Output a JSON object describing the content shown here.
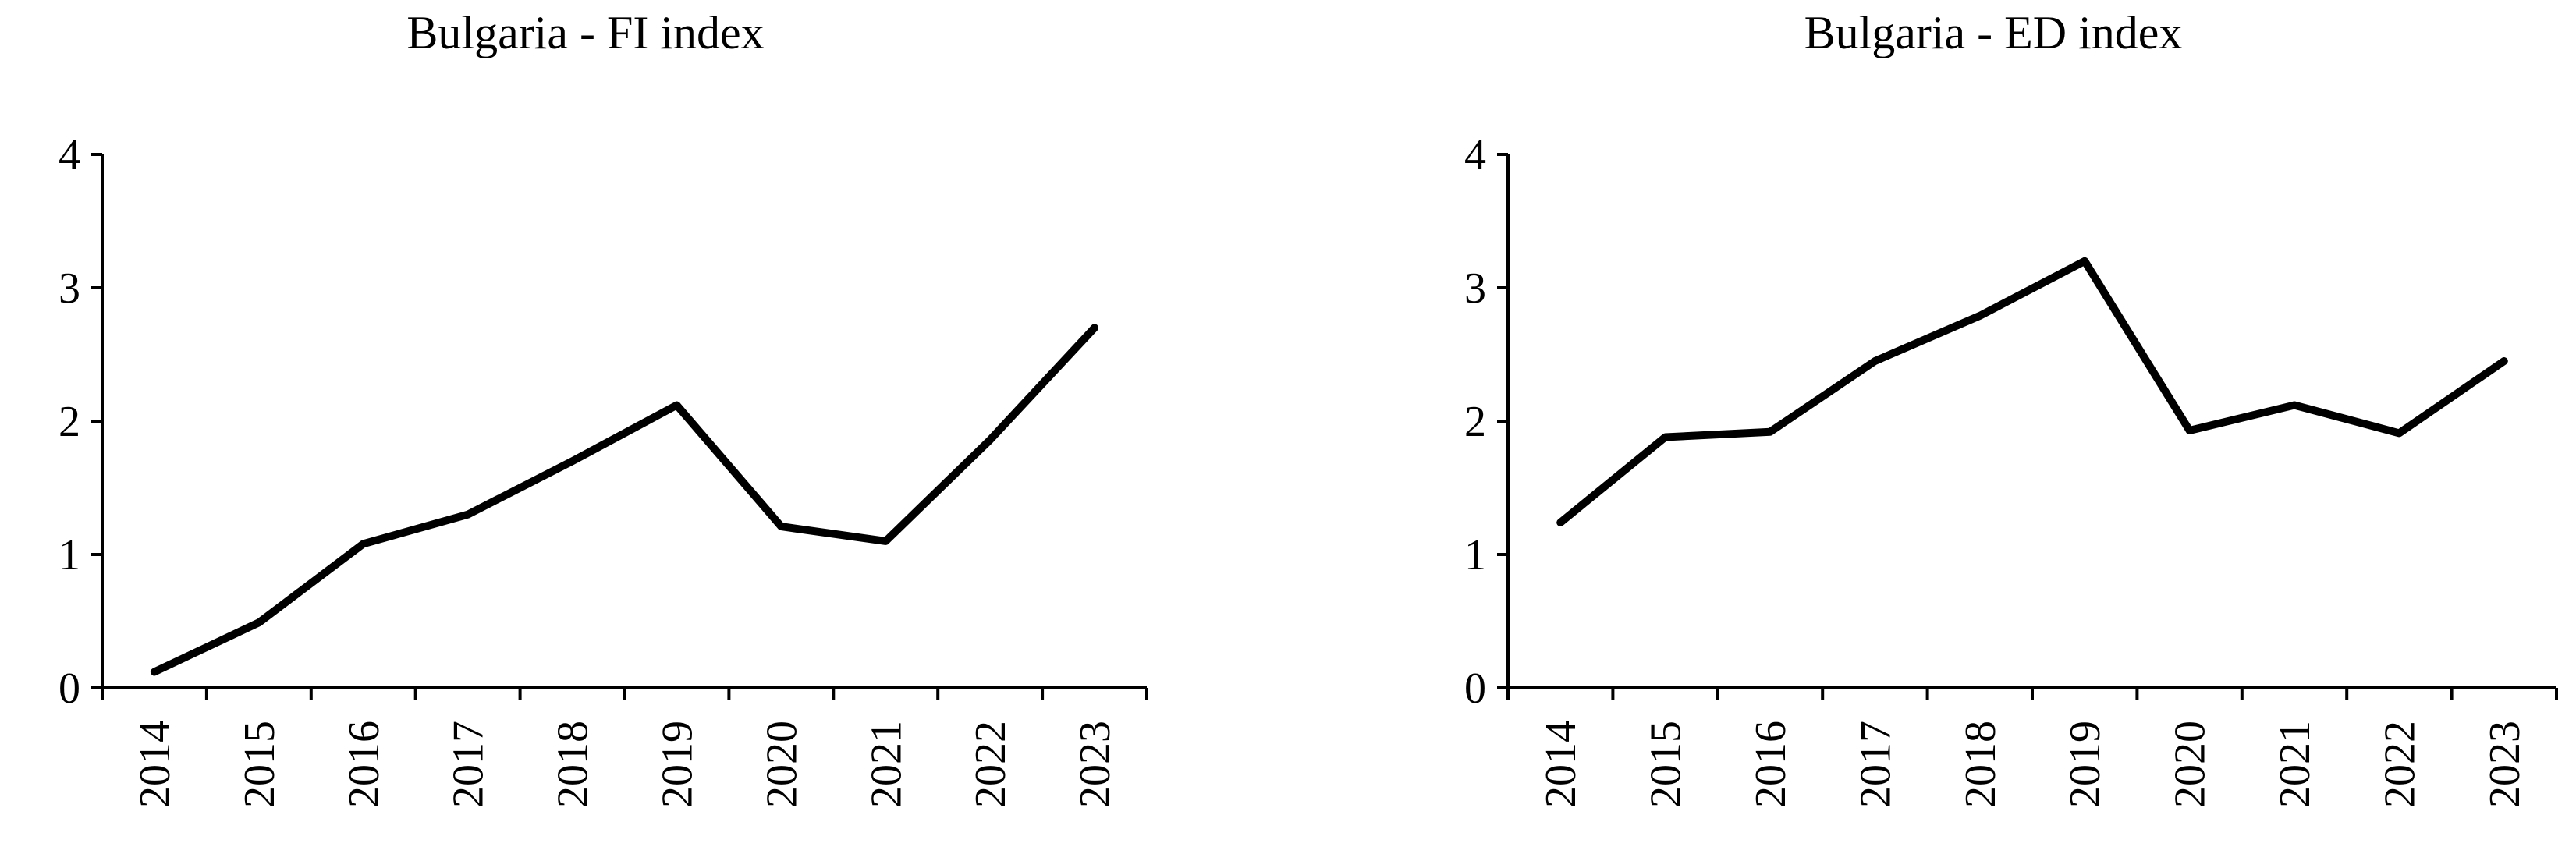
{
  "chart_data": [
    {
      "type": "line",
      "title": "Bulgaria - FI index",
      "categories": [
        "2014",
        "2015",
        "2016",
        "2017",
        "2018",
        "2019",
        "2020",
        "2021",
        "2022",
        "2023"
      ],
      "values": [
        0.12,
        0.49,
        1.08,
        1.3,
        1.7,
        2.12,
        1.21,
        1.1,
        1.86,
        2.7
      ],
      "color": "#000000",
      "ylim": [
        0,
        4
      ],
      "yticks": [
        0,
        1,
        2,
        3,
        4
      ],
      "grid": false
    },
    {
      "type": "line",
      "title": "Bulgaria - ED index",
      "categories": [
        "2014",
        "2015",
        "2016",
        "2017",
        "2018",
        "2019",
        "2020",
        "2021",
        "2022",
        "2023"
      ],
      "values": [
        1.24,
        1.88,
        1.92,
        2.45,
        2.79,
        3.2,
        1.93,
        2.12,
        1.91,
        2.45
      ],
      "color": "#000000",
      "ylim": [
        0,
        4
      ],
      "yticks": [
        0,
        1,
        2,
        3,
        4
      ],
      "grid": false
    }
  ]
}
